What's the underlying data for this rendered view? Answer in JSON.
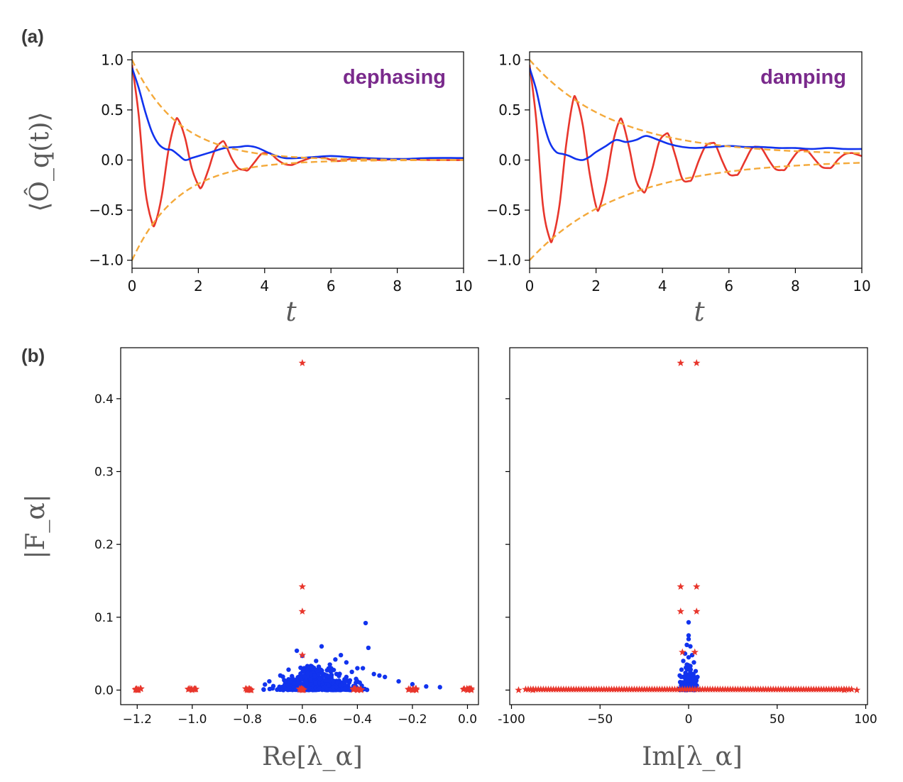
{
  "panel_labels": {
    "a": "(a)",
    "b": "(b)"
  },
  "colors": {
    "red": "#e8362c",
    "blue": "#1133ee",
    "orange": "#f4a93a",
    "annotation": "#7a2a8c"
  },
  "chart_data": [
    {
      "id": "a-left",
      "type": "line",
      "annotation": "dephasing",
      "xlabel": "t",
      "ylabel": "⟨Ô_q(t)⟩",
      "xlim": [
        0,
        10
      ],
      "ylim": [
        -1.08,
        1.08
      ],
      "xticks": [
        "0",
        "2",
        "4",
        "6",
        "8",
        "10"
      ],
      "yticks": [
        "1.0",
        "0.5",
        "0.0",
        "−0.5",
        "−1.0"
      ],
      "series": [
        {
          "name": "red oscillating",
          "color": "#e8362c",
          "x": [
            0,
            0.2,
            0.4,
            0.6,
            0.7,
            0.9,
            1.1,
            1.3,
            1.4,
            1.6,
            1.8,
            2.0,
            2.1,
            2.3,
            2.5,
            2.7,
            2.8,
            3.0,
            3.2,
            3.4,
            3.5,
            3.7,
            3.9,
            4.1,
            4.2,
            4.4,
            4.6,
            4.8,
            4.9,
            5.2,
            5.5,
            5.8,
            6.2,
            6.6,
            7.0,
            7.5,
            8.0,
            9.0,
            10.0
          ],
          "y": [
            0.95,
            0.45,
            -0.3,
            -0.62,
            -0.63,
            -0.35,
            0.1,
            0.38,
            0.4,
            0.22,
            -0.08,
            -0.25,
            -0.27,
            -0.1,
            0.1,
            0.18,
            0.17,
            0.02,
            -0.08,
            -0.1,
            -0.1,
            -0.02,
            0.06,
            0.07,
            0.06,
            0.0,
            -0.04,
            -0.05,
            -0.04,
            0.0,
            0.03,
            0.02,
            -0.01,
            0.01,
            0.01,
            0.0,
            0.01,
            0.0,
            0.0
          ]
        },
        {
          "name": "blue",
          "color": "#1133ee",
          "x": [
            0,
            0.2,
            0.4,
            0.6,
            0.8,
            1.0,
            1.2,
            1.4,
            1.6,
            1.8,
            2.0,
            2.4,
            2.8,
            3.2,
            3.5,
            3.8,
            4.2,
            4.6,
            5.0,
            5.5,
            6.0,
            6.5,
            7.0,
            8.0,
            9.0,
            10.0
          ],
          "y": [
            0.92,
            0.72,
            0.48,
            0.28,
            0.16,
            0.11,
            0.1,
            0.05,
            0.0,
            0.02,
            0.04,
            0.08,
            0.12,
            0.13,
            0.14,
            0.12,
            0.06,
            0.02,
            0.02,
            0.03,
            0.04,
            0.03,
            0.02,
            0.01,
            0.02,
            0.02
          ]
        },
        {
          "name": "upper envelope",
          "color": "#f4a93a",
          "dashed": true,
          "form": "exp",
          "amplitude": 1.0,
          "rate": 0.72
        },
        {
          "name": "lower envelope",
          "color": "#f4a93a",
          "dashed": true,
          "form": "exp",
          "amplitude": -1.0,
          "rate": 0.72
        }
      ]
    },
    {
      "id": "a-right",
      "type": "line",
      "annotation": "damping",
      "xlabel": "t",
      "ylabel": "",
      "xlim": [
        0,
        10
      ],
      "ylim": [
        -1.08,
        1.08
      ],
      "xticks": [
        "0",
        "2",
        "4",
        "6",
        "8",
        "10"
      ],
      "yticks": [
        "1.0",
        "0.5",
        "0.0",
        "−0.5",
        "−1.0"
      ],
      "series": [
        {
          "name": "red oscillating",
          "color": "#e8362c",
          "x": [
            0,
            0.2,
            0.4,
            0.6,
            0.7,
            0.9,
            1.1,
            1.3,
            1.4,
            1.6,
            1.8,
            2.0,
            2.1,
            2.3,
            2.5,
            2.7,
            2.8,
            3.0,
            3.2,
            3.4,
            3.5,
            3.7,
            3.9,
            4.1,
            4.2,
            4.4,
            4.6,
            4.8,
            4.9,
            5.1,
            5.3,
            5.5,
            5.6,
            5.8,
            6.0,
            6.2,
            6.3,
            6.5,
            6.7,
            6.9,
            7.0,
            7.2,
            7.4,
            7.6,
            7.7,
            7.9,
            8.1,
            8.3,
            8.4,
            8.6,
            8.8,
            9.0,
            9.1,
            9.3,
            9.5,
            9.7,
            9.8,
            10.0
          ],
          "y": [
            0.95,
            0.4,
            -0.45,
            -0.78,
            -0.78,
            -0.45,
            0.15,
            0.58,
            0.61,
            0.35,
            -0.12,
            -0.46,
            -0.48,
            -0.22,
            0.16,
            0.39,
            0.38,
            0.12,
            -0.2,
            -0.31,
            -0.3,
            -0.08,
            0.18,
            0.26,
            0.24,
            0.03,
            -0.19,
            -0.21,
            -0.18,
            0.0,
            0.14,
            0.17,
            0.15,
            -0.01,
            -0.14,
            -0.15,
            -0.13,
            0.0,
            0.12,
            0.13,
            0.11,
            0.0,
            -0.09,
            -0.1,
            -0.09,
            0.01,
            0.09,
            0.1,
            0.08,
            0.0,
            -0.07,
            -0.08,
            -0.07,
            0.01,
            0.06,
            0.07,
            0.06,
            0.04
          ]
        },
        {
          "name": "blue",
          "color": "#1133ee",
          "x": [
            0,
            0.2,
            0.4,
            0.6,
            0.8,
            1.0,
            1.2,
            1.4,
            1.6,
            1.8,
            2.0,
            2.3,
            2.6,
            2.9,
            3.2,
            3.5,
            3.8,
            4.2,
            4.6,
            5.0,
            5.5,
            6.0,
            6.5,
            7.0,
            7.5,
            8.0,
            8.5,
            9.0,
            9.5,
            10.0
          ],
          "y": [
            0.92,
            0.7,
            0.4,
            0.18,
            0.08,
            0.06,
            0.04,
            0.01,
            0.0,
            0.03,
            0.08,
            0.14,
            0.2,
            0.18,
            0.2,
            0.24,
            0.21,
            0.16,
            0.13,
            0.12,
            0.13,
            0.14,
            0.13,
            0.13,
            0.12,
            0.12,
            0.11,
            0.12,
            0.11,
            0.11
          ]
        },
        {
          "name": "upper envelope",
          "color": "#f4a93a",
          "dashed": true,
          "form": "decay-to",
          "amplitude": 1.0,
          "rate": 0.4,
          "offset": 0.05
        },
        {
          "name": "lower envelope",
          "color": "#f4a93a",
          "dashed": true,
          "form": "decay-to",
          "amplitude": -1.0,
          "rate": 0.36,
          "offset": 0.0
        }
      ]
    },
    {
      "id": "b-left",
      "type": "scatter",
      "xlabel": "Re[λ_α]",
      "ylabel": "|F_α|",
      "xlim": [
        -1.26,
        0.04
      ],
      "ylim": [
        -0.02,
        0.47
      ],
      "xticks": [
        "−1.2",
        "−1.0",
        "−0.8",
        "−0.6",
        "−0.4",
        "−0.2",
        "0.0"
      ],
      "yticks": [
        "0.0",
        "0.1",
        "0.2",
        "0.3",
        "0.4"
      ],
      "series": [
        {
          "name": "blue points",
          "color": "#1133ee",
          "marker": "dot",
          "points": [
            [
              -0.62,
              0.054
            ],
            [
              -0.6,
              0.047
            ],
            [
              -0.55,
              0.04
            ],
            [
              -0.46,
              0.048
            ],
            [
              -0.37,
              0.092
            ],
            [
              -0.36,
              0.058
            ],
            [
              -0.38,
              0.03
            ],
            [
              -0.32,
              0.02
            ],
            [
              -0.3,
              0.018
            ],
            [
              -0.25,
              0.012
            ],
            [
              -0.2,
              0.008
            ],
            [
              -0.15,
              0.005
            ],
            [
              -0.1,
              0.004
            ],
            [
              -0.44,
              0.038
            ],
            [
              -0.5,
              0.035
            ],
            [
              -0.53,
              0.06
            ],
            [
              -0.58,
              0.03
            ],
            [
              -0.48,
              0.042
            ],
            [
              -0.42,
              0.025
            ],
            [
              -0.68,
              0.02
            ],
            [
              -0.72,
              0.012
            ],
            [
              -0.65,
              0.028
            ],
            [
              -0.4,
              0.03
            ],
            [
              -0.34,
              0.022
            ]
          ],
          "cloud": {
            "x_center": -0.55,
            "x_spread": 0.22,
            "max_height": 0.03,
            "count": 520
          }
        },
        {
          "name": "red stars",
          "color": "#e8362c",
          "marker": "star",
          "points": [
            [
              -0.6,
              0.449
            ],
            [
              -0.6,
              0.142
            ],
            [
              -0.6,
              0.108
            ],
            [
              -0.6,
              0.048
            ],
            [
              -0.6,
              0.0
            ],
            [
              -1.2,
              0.0
            ],
            [
              -1.0,
              0.0
            ],
            [
              -0.8,
              0.0
            ],
            [
              -0.4,
              0.0
            ],
            [
              -0.2,
              0.0
            ],
            [
              0.0,
              0.0
            ]
          ],
          "clusters": [
            -1.2,
            -1.0,
            -0.8,
            -0.6,
            -0.4,
            -0.2,
            0.0
          ]
        }
      ]
    },
    {
      "id": "b-right",
      "type": "scatter",
      "xlabel": "Im[λ_α]",
      "ylabel": "",
      "xlim": [
        -101,
        101
      ],
      "ylim": [
        -0.02,
        0.47
      ],
      "xticks": [
        "-100",
        "−50",
        "0",
        "50",
        "100"
      ],
      "yticks": [],
      "series": [
        {
          "name": "blue points",
          "color": "#1133ee",
          "marker": "dot",
          "points": [
            [
              0,
              0.093
            ],
            [
              0,
              0.075
            ],
            [
              0,
              0.07
            ],
            [
              -1,
              0.062
            ],
            [
              1,
              0.06
            ],
            [
              -2,
              0.05
            ],
            [
              2,
              0.048
            ],
            [
              -3,
              0.04
            ],
            [
              3,
              0.038
            ],
            [
              0,
              0.045
            ],
            [
              -1,
              0.035
            ],
            [
              1,
              0.033
            ],
            [
              -4,
              0.028
            ],
            [
              4,
              0.026
            ],
            [
              -5,
              0.02
            ],
            [
              5,
              0.018
            ]
          ],
          "cloud": {
            "x_center": 0,
            "x_spread": 7,
            "max_height": 0.03,
            "count": 220
          }
        },
        {
          "name": "red stars",
          "color": "#e8362c",
          "marker": "star",
          "points": [
            [
              -4.5,
              0.449
            ],
            [
              4.5,
              0.449
            ],
            [
              -4.5,
              0.142
            ],
            [
              4.5,
              0.142
            ],
            [
              -4.5,
              0.108
            ],
            [
              4.5,
              0.108
            ],
            [
              -3.5,
              0.052
            ],
            [
              3.5,
              0.052
            ],
            [
              -96,
              0.0
            ],
            [
              -88,
              0.0
            ],
            [
              88,
              0.0
            ],
            [
              95,
              0.0
            ]
          ],
          "band": {
            "x_min": -92,
            "x_max": 92
          }
        }
      ]
    }
  ]
}
